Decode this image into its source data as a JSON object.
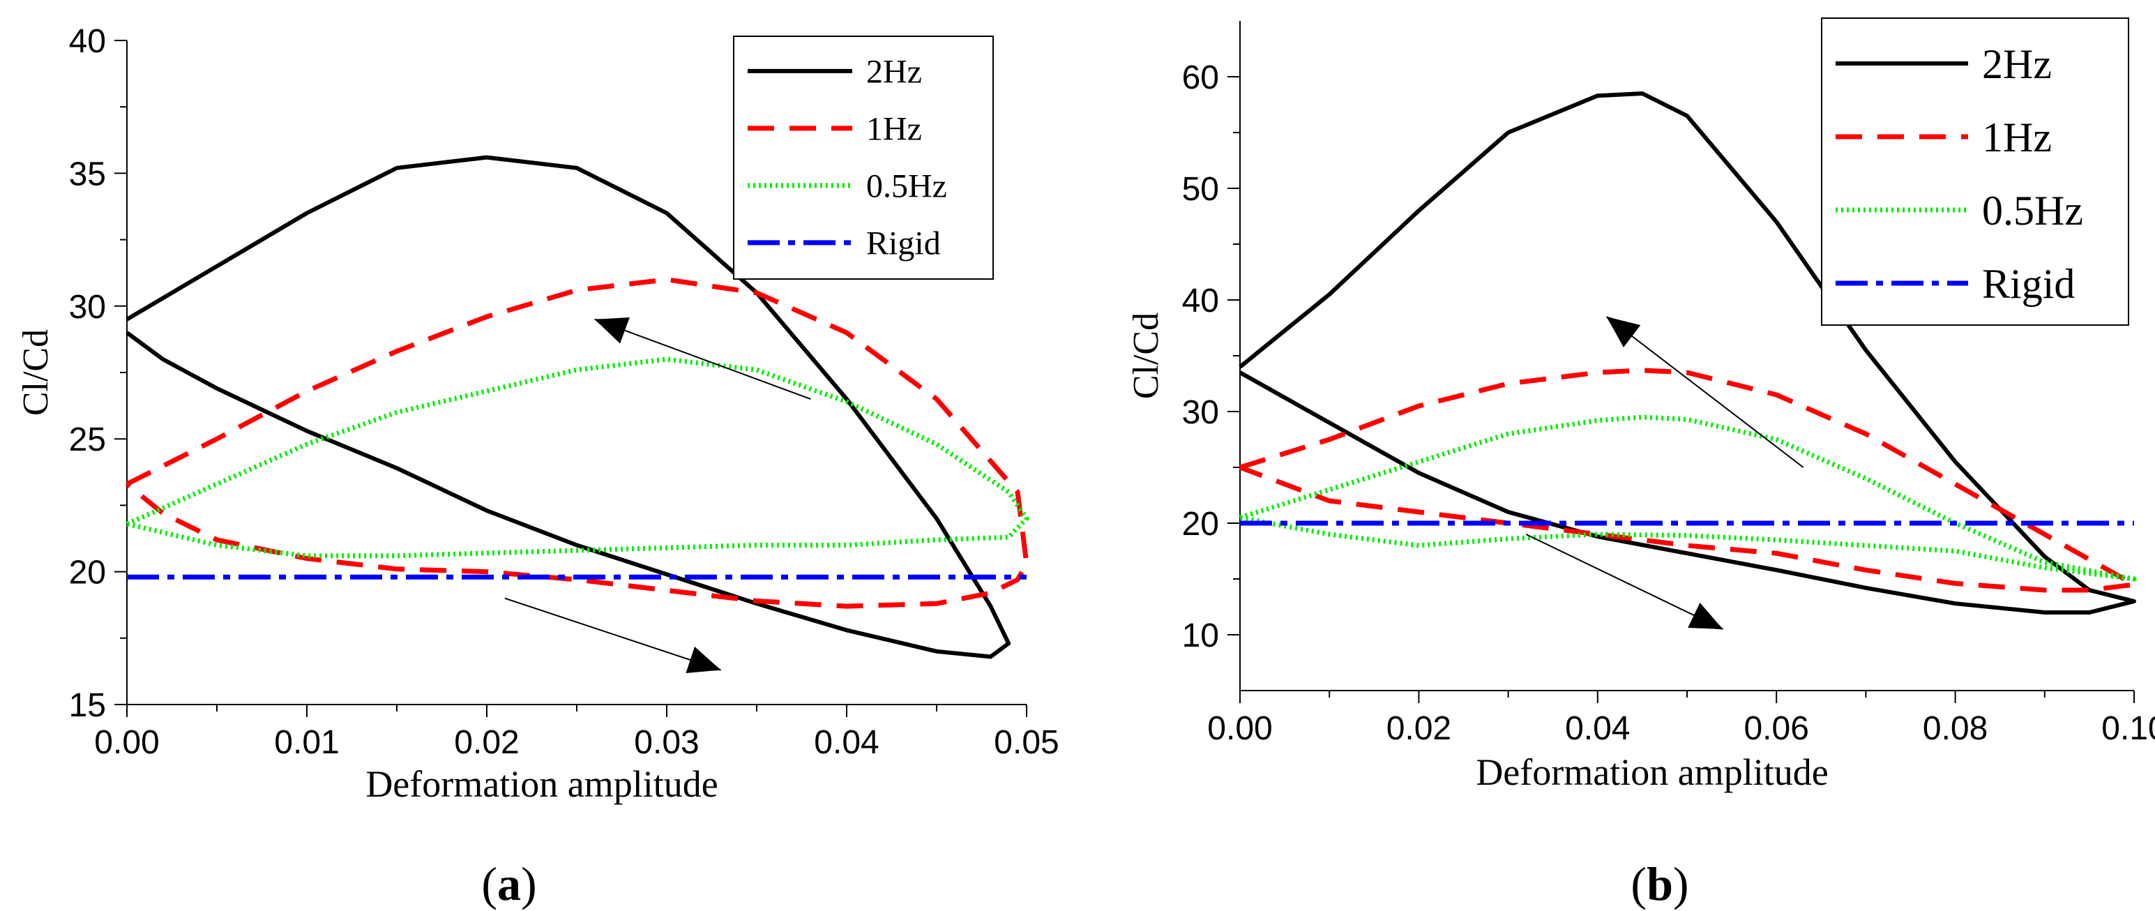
{
  "chart_data": [
    {
      "panel_label": "a",
      "type": "line",
      "xlabel": "Deformation amplitude",
      "ylabel": "Cl/Cd",
      "xlim": [
        0,
        0.05
      ],
      "ylim": [
        15,
        40
      ],
      "xticks": [
        "0.00",
        "0.01",
        "0.02",
        "0.03",
        "0.04",
        "0.05"
      ],
      "yticks": [
        "15",
        "20",
        "25",
        "30",
        "35",
        "40"
      ],
      "legend_position": "top-right",
      "series": [
        {
          "name": "2Hz",
          "color": "#000000",
          "style": "solid",
          "x": [
            0,
            0.005,
            0.01,
            0.015,
            0.02,
            0.025,
            0.03,
            0.035,
            0.04,
            0.045,
            0.048,
            0.049,
            0.048,
            0.045,
            0.04,
            0.035,
            0.03,
            0.025,
            0.02,
            0.015,
            0.01,
            0.005,
            0.002,
            0
          ],
          "y": [
            29.5,
            31.5,
            33.5,
            35.2,
            35.6,
            35.2,
            33.5,
            30.5,
            26.5,
            22.0,
            18.7,
            17.3,
            16.8,
            17.0,
            17.8,
            18.8,
            19.9,
            21.0,
            22.3,
            23.9,
            25.3,
            26.9,
            28.0,
            29.0
          ]
        },
        {
          "name": "1Hz",
          "color": "#ff0000",
          "style": "dashed",
          "x": [
            0,
            0.005,
            0.01,
            0.015,
            0.02,
            0.025,
            0.03,
            0.035,
            0.04,
            0.045,
            0.0495,
            0.05,
            0.0495,
            0.048,
            0.045,
            0.04,
            0.035,
            0.03,
            0.025,
            0.02,
            0.015,
            0.01,
            0.005,
            0.002,
            0
          ],
          "y": [
            23.3,
            25.0,
            26.8,
            28.3,
            29.6,
            30.6,
            31.0,
            30.5,
            29.0,
            26.5,
            23.0,
            20.3,
            19.7,
            19.2,
            18.8,
            18.7,
            18.9,
            19.3,
            19.7,
            20.0,
            20.1,
            20.5,
            21.2,
            22.2,
            23.3
          ]
        },
        {
          "name": "0.5Hz",
          "color": "#00ee00",
          "style": "dotted",
          "x": [
            0,
            0.005,
            0.01,
            0.015,
            0.02,
            0.025,
            0.03,
            0.035,
            0.04,
            0.045,
            0.049,
            0.05,
            0.049,
            0.045,
            0.04,
            0.035,
            0.03,
            0.025,
            0.02,
            0.015,
            0.01,
            0.005,
            0
          ],
          "y": [
            21.8,
            23.3,
            24.8,
            26.0,
            26.8,
            27.6,
            28.0,
            27.6,
            26.4,
            24.8,
            23.0,
            22.0,
            21.3,
            21.2,
            21.0,
            21.0,
            20.9,
            20.8,
            20.7,
            20.6,
            20.6,
            21.0,
            21.8
          ]
        },
        {
          "name": "Rigid",
          "color": "#0000ff",
          "style": "dash-dot",
          "x": [
            0,
            0.05
          ],
          "y": [
            19.8,
            19.8
          ]
        }
      ],
      "annotations": [
        {
          "type": "arrow",
          "from": [
            0.038,
            26.5
          ],
          "to": [
            0.026,
            29.5
          ]
        },
        {
          "type": "arrow",
          "from": [
            0.021,
            19.0
          ],
          "to": [
            0.033,
            16.3
          ]
        }
      ]
    },
    {
      "panel_label": "b",
      "type": "line",
      "xlabel": "Deformation amplitude",
      "ylabel": "Cl/Cd",
      "xlim": [
        0,
        0.1
      ],
      "ylim": [
        5,
        65
      ],
      "xticks": [
        "0.00",
        "0.02",
        "0.04",
        "0.06",
        "0.08",
        "0.10"
      ],
      "yticks": [
        "10",
        "20",
        "30",
        "40",
        "50",
        "60"
      ],
      "legend_position": "top-right",
      "series": [
        {
          "name": "2Hz",
          "color": "#000000",
          "style": "solid",
          "x": [
            0,
            0.01,
            0.02,
            0.03,
            0.04,
            0.045,
            0.05,
            0.06,
            0.07,
            0.08,
            0.09,
            0.095,
            0.1,
            0.095,
            0.09,
            0.08,
            0.07,
            0.06,
            0.05,
            0.04,
            0.03,
            0.02,
            0.01,
            0
          ],
          "y": [
            34.0,
            40.5,
            48.0,
            55.0,
            58.3,
            58.5,
            56.5,
            47.0,
            35.5,
            25.5,
            17.0,
            14.0,
            13.0,
            12.0,
            12.0,
            12.8,
            14.2,
            15.8,
            17.3,
            18.8,
            21.0,
            24.5,
            29.0,
            33.5
          ]
        },
        {
          "name": "1Hz",
          "color": "#ff0000",
          "style": "dashed",
          "x": [
            0,
            0.01,
            0.02,
            0.03,
            0.04,
            0.045,
            0.05,
            0.06,
            0.07,
            0.08,
            0.09,
            0.1,
            0.095,
            0.09,
            0.08,
            0.07,
            0.06,
            0.05,
            0.04,
            0.03,
            0.02,
            0.01,
            0
          ],
          "y": [
            25.0,
            27.5,
            30.5,
            32.5,
            33.5,
            33.7,
            33.5,
            31.5,
            28.0,
            23.5,
            19.0,
            14.5,
            14.0,
            14.0,
            14.6,
            15.8,
            17.3,
            18.0,
            19.0,
            20.0,
            21.0,
            22.0,
            25.0
          ]
        },
        {
          "name": "0.5Hz",
          "color": "#00ee00",
          "style": "dotted",
          "x": [
            0,
            0.01,
            0.02,
            0.03,
            0.04,
            0.045,
            0.05,
            0.06,
            0.07,
            0.08,
            0.09,
            0.1,
            0.09,
            0.08,
            0.07,
            0.06,
            0.05,
            0.04,
            0.03,
            0.02,
            0.01,
            0
          ],
          "y": [
            20.5,
            23.0,
            25.5,
            28.0,
            29.2,
            29.5,
            29.3,
            27.5,
            24.0,
            20.0,
            16.5,
            15.0,
            16.0,
            17.5,
            18.0,
            18.5,
            18.9,
            19.0,
            18.6,
            18.0,
            19.0,
            20.5
          ]
        },
        {
          "name": "Rigid",
          "color": "#0000ff",
          "style": "dash-dot",
          "x": [
            0,
            0.1
          ],
          "y": [
            20.0,
            20.0
          ]
        }
      ],
      "annotations": [
        {
          "type": "arrow",
          "from": [
            0.063,
            25.0
          ],
          "to": [
            0.041,
            38.5
          ]
        },
        {
          "type": "arrow",
          "from": [
            0.032,
            19.0
          ],
          "to": [
            0.054,
            10.5
          ]
        }
      ]
    }
  ]
}
